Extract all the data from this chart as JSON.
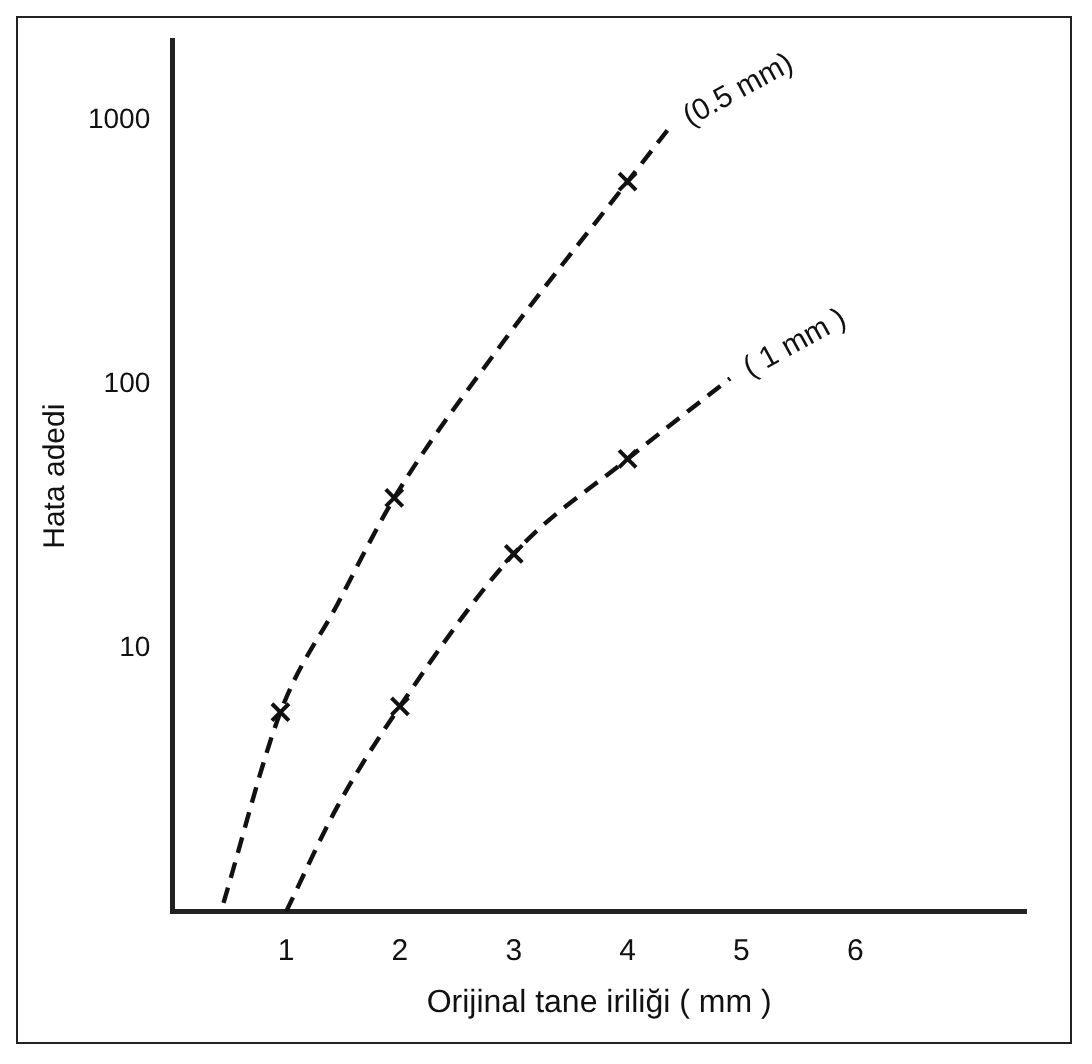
{
  "chart_data": {
    "type": "line",
    "xlabel": "Orijinal tane iriliği ( mm )",
    "ylabel": "Hata adedi",
    "log": "y",
    "grid": false,
    "legend": false,
    "xlim": [
      0,
      7.5
    ],
    "xticks": [
      1,
      2,
      3,
      4,
      5,
      6
    ],
    "ylim": [
      1,
      2000
    ],
    "yticks": [
      10,
      100,
      1000
    ],
    "series": [
      {
        "name": "(0.5 mm)",
        "color": "#111111",
        "marker": "none",
        "line_style": "dashed",
        "x": [
          0.45,
          0.95,
          1.45,
          1.95,
          2.9,
          4,
          4.37
        ],
        "values": [
          1.08,
          5.7,
          14.6,
          37,
          143,
          585,
          940
        ]
      },
      {
        "name": "( 1 mm )",
        "color": "#111111",
        "marker": "none",
        "line_style": "dashed",
        "x": [
          1,
          1.45,
          2,
          3,
          4,
          4.9
        ],
        "values": [
          1,
          2.5,
          6,
          22.7,
          52,
          105
        ]
      },
      {
        "type": "scatter",
        "color": "#111111",
        "marker": "cross",
        "x": [
          0.95,
          1.95,
          4
        ],
        "values": [
          5.7,
          37,
          585
        ]
      },
      {
        "type": "scatter",
        "color": "#111111",
        "marker": "cross",
        "x": [
          2,
          3,
          4
        ],
        "values": [
          6,
          22.7,
          52
        ]
      }
    ]
  }
}
